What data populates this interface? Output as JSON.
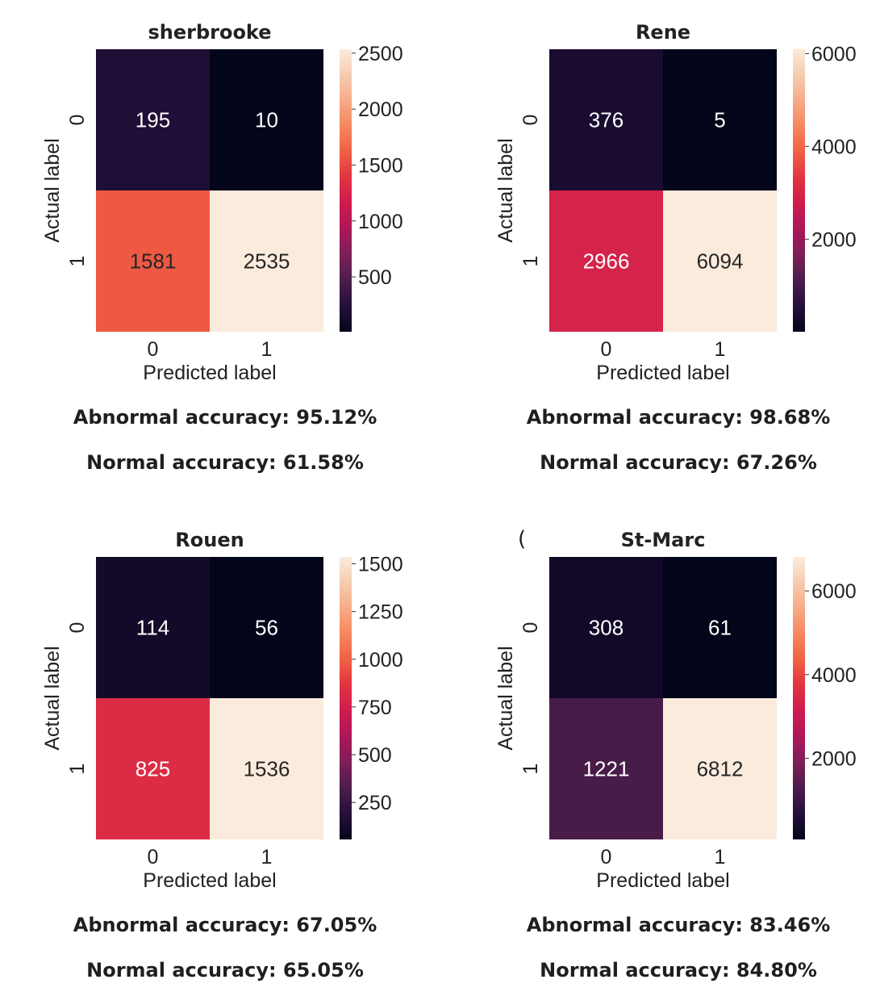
{
  "chart_data": [
    {
      "type": "heatmap",
      "title": "sherbrooke",
      "xlabel": "Predicted label",
      "ylabel": "Actual label",
      "x_ticks": [
        "0",
        "1"
      ],
      "y_ticks": [
        "0",
        "1"
      ],
      "matrix": [
        [
          195,
          10
        ],
        [
          1581,
          2535
        ]
      ],
      "colorbar": {
        "min": 10,
        "max": 2535,
        "ticks": [
          500,
          1000,
          1500,
          2000,
          2500
        ]
      },
      "metrics": [
        "Abnormal accuracy: 95.12%",
        "Normal accuracy: 61.58%"
      ]
    },
    {
      "type": "heatmap",
      "title": "Rene",
      "xlabel": "Predicted label",
      "ylabel": "Actual label",
      "x_ticks": [
        "0",
        "1"
      ],
      "y_ticks": [
        "0",
        "1"
      ],
      "matrix": [
        [
          376,
          5
        ],
        [
          2966,
          6094
        ]
      ],
      "colorbar": {
        "min": 5,
        "max": 6094,
        "ticks": [
          2000,
          4000,
          6000
        ]
      },
      "metrics": [
        "Abnormal accuracy: 98.68%",
        "Normal accuracy: 67.26%"
      ]
    },
    {
      "type": "heatmap",
      "title": "Rouen",
      "xlabel": "Predicted label",
      "ylabel": "Actual label",
      "x_ticks": [
        "0",
        "1"
      ],
      "y_ticks": [
        "0",
        "1"
      ],
      "matrix": [
        [
          114,
          56
        ],
        [
          825,
          1536
        ]
      ],
      "colorbar": {
        "min": 56,
        "max": 1536,
        "ticks": [
          250,
          500,
          750,
          1000,
          1250,
          1500
        ]
      },
      "metrics": [
        "Abnormal accuracy: 67.05%",
        "Normal accuracy: 65.05%"
      ]
    },
    {
      "type": "heatmap",
      "title": "St-Marc",
      "xlabel": "Predicted label",
      "ylabel": "Actual label",
      "x_ticks": [
        "0",
        "1"
      ],
      "y_ticks": [
        "0",
        "1"
      ],
      "matrix": [
        [
          308,
          61
        ],
        [
          1221,
          6812
        ]
      ],
      "colorbar": {
        "min": 61,
        "max": 6812,
        "ticks": [
          2000,
          4000,
          6000
        ]
      },
      "metrics": [
        "Abnormal accuracy: 83.46%",
        "Normal accuracy: 84.80%"
      ]
    }
  ],
  "colormap": [
    "#03051a",
    "#26103b",
    "#4c1d4b",
    "#7d1f58",
    "#ad1759",
    "#cf1b4e",
    "#e13342",
    "#f06043",
    "#f6875f",
    "#f6ab87",
    "#f6ccb0",
    "#faebdd"
  ],
  "stray_mark": "("
}
